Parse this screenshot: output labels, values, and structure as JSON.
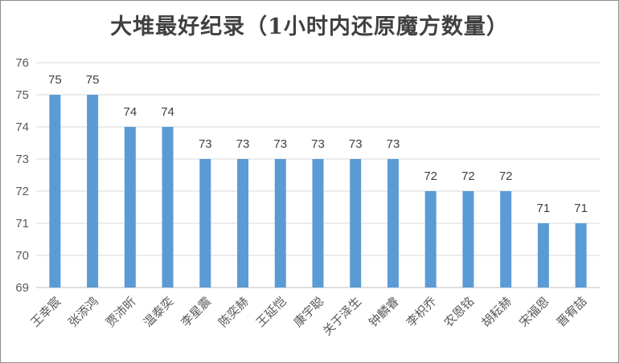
{
  "chart_data": {
    "type": "bar",
    "title": "大堆最好纪录（1小时内还原魔方数量）",
    "categories": [
      "王幸宸",
      "张添鸿",
      "贾沛昕",
      "温泰奕",
      "李星震",
      "陈奕赫",
      "王延恺",
      "康宇聪",
      "关于泽生",
      "钟麟睿",
      "李枳乔",
      "农恩铭",
      "胡耘赫",
      "宋福恩",
      "晋宥喆"
    ],
    "values": [
      75,
      75,
      74,
      74,
      73,
      73,
      73,
      73,
      73,
      73,
      72,
      72,
      72,
      71,
      71
    ],
    "ylim": [
      69,
      76
    ],
    "yticks": [
      69,
      70,
      71,
      72,
      73,
      74,
      75,
      76
    ],
    "grid": true,
    "legend": "none",
    "bar_color": "#5b9bd5"
  }
}
